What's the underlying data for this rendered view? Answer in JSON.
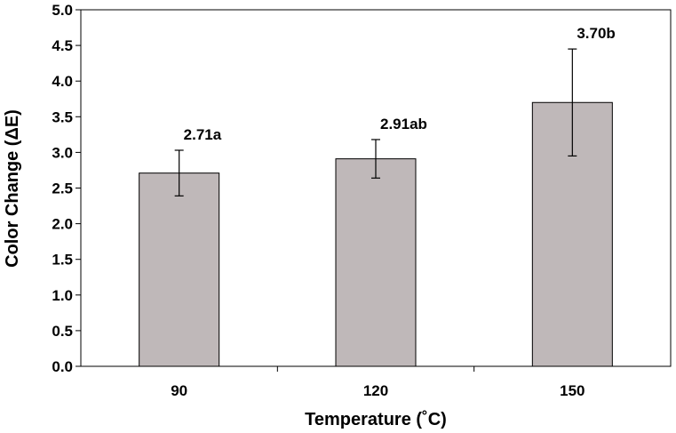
{
  "chart_data": {
    "type": "bar",
    "categories": [
      "90",
      "120",
      "150"
    ],
    "values": [
      2.71,
      2.91,
      3.7
    ],
    "errors": [
      0.32,
      0.27,
      0.75
    ],
    "data_labels": [
      "2.71a",
      "2.91ab",
      "3.70b"
    ],
    "xlabel": "Temperature (˚C)",
    "ylabel": "Color Change (ΔE)",
    "ylim": [
      0,
      5
    ],
    "yticks": [
      "0.0",
      "0.5",
      "1.0",
      "1.5",
      "2.0",
      "2.5",
      "3.0",
      "3.5",
      "4.0",
      "4.5",
      "5.0"
    ],
    "grid": false,
    "legend": "none",
    "bar_color": "#bfb8b9"
  }
}
